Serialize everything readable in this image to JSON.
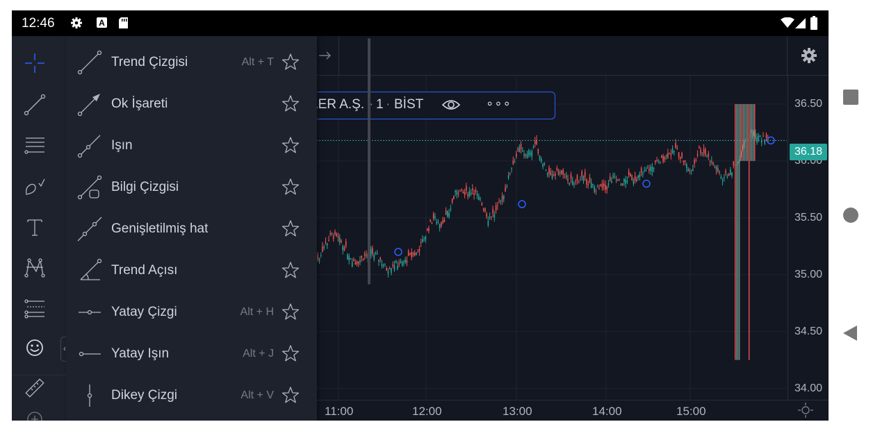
{
  "status_bar": {
    "time": "12:46",
    "left_icons": [
      "gear-icon",
      "a-box-icon",
      "sd-card-icon"
    ],
    "right_icons": [
      "wifi-icon",
      "signal-icon",
      "battery-icon"
    ]
  },
  "drawing_menu": {
    "items": [
      {
        "label": "Trend Çizgisi",
        "shortcut": "Alt + T",
        "icon": "trend-line-icon"
      },
      {
        "label": "Ok İşareti",
        "shortcut": "",
        "icon": "arrow-marker-icon"
      },
      {
        "label": "Işın",
        "shortcut": "",
        "icon": "ray-icon"
      },
      {
        "label": "Bilgi Çizgisi",
        "shortcut": "",
        "icon": "info-line-icon"
      },
      {
        "label": "Genişletilmiş hat",
        "shortcut": "",
        "icon": "extended-line-icon"
      },
      {
        "label": "Trend Açısı",
        "shortcut": "",
        "icon": "trend-angle-icon"
      },
      {
        "label": "Yatay Çizgi",
        "shortcut": "Alt + H",
        "icon": "horizontal-line-icon"
      },
      {
        "label": "Yatay Işın",
        "shortcut": "Alt + J",
        "icon": "horizontal-ray-icon"
      },
      {
        "label": "Dikey Çizgi",
        "shortcut": "Alt + V",
        "icon": "vertical-line-icon"
      }
    ]
  },
  "left_toolbar": {
    "tools": [
      "crosshair-icon",
      "trend-line-tool-icon",
      "fib-tool-icon",
      "brush-tool-icon",
      "text-tool-icon",
      "pattern-tool-icon",
      "prediction-tool-icon",
      "emoji-icon",
      "ruler-icon",
      "zoom-in-icon"
    ]
  },
  "chart": {
    "symbol_legend": {
      "name": "LER A.Ş.",
      "interval": "1",
      "exchange": "BİST",
      "more": "∘∘∘"
    },
    "y_axis_labels": [
      "36.50",
      "36.00",
      "35.50",
      "35.00",
      "34.50",
      "34.00"
    ],
    "current_price": "36.18",
    "x_axis_labels": [
      "11:00",
      "12:00",
      "13:00",
      "14:00",
      "15:00"
    ],
    "colors": {
      "up": "#26a69a",
      "down": "#ef5350",
      "price_badge": "#26a69a",
      "highlight": "#2962ff"
    }
  },
  "chart_data": {
    "type": "candlestick",
    "x": [
      "10:55",
      "11:00",
      "11:05",
      "11:10",
      "11:15",
      "11:20",
      "11:25",
      "11:30",
      "11:35",
      "11:40",
      "11:45",
      "11:50",
      "11:55",
      "12:00",
      "12:05",
      "12:10",
      "12:15",
      "12:20",
      "12:25",
      "12:30",
      "12:35",
      "12:40",
      "12:45",
      "12:50",
      "12:55",
      "13:00",
      "13:05",
      "13:10",
      "13:15",
      "13:20",
      "13:25",
      "13:30",
      "13:35",
      "13:40",
      "13:45",
      "13:50",
      "13:55",
      "14:00",
      "14:05",
      "14:10",
      "14:15",
      "14:20",
      "14:25",
      "14:30",
      "14:35",
      "14:40",
      "14:45",
      "14:50",
      "14:55",
      "15:00",
      "15:05",
      "15:10",
      "15:15",
      "15:20",
      "15:25",
      "15:30",
      "15:35",
      "15:40",
      "15:45"
    ],
    "y": [
      35.1,
      35.25,
      35.35,
      35.3,
      35.2,
      35.1,
      35.15,
      35.2,
      35.15,
      35.05,
      35.1,
      35.1,
      35.15,
      35.2,
      35.35,
      35.5,
      35.45,
      35.55,
      35.75,
      35.7,
      35.75,
      35.65,
      35.5,
      35.55,
      35.7,
      35.95,
      36.1,
      36.05,
      36.15,
      36.0,
      35.85,
      35.9,
      35.85,
      35.8,
      35.85,
      35.8,
      35.75,
      35.75,
      35.85,
      35.8,
      35.85,
      35.85,
      35.9,
      35.95,
      36.0,
      36.05,
      36.1,
      36.0,
      35.9,
      36.1,
      36.05,
      35.95,
      35.85,
      35.9,
      36.0,
      36.2,
      36.25,
      36.2,
      36.18
    ],
    "ylim": [
      33.9,
      36.75
    ],
    "y_ticks": [
      34.0,
      34.5,
      35.0,
      35.5,
      36.0,
      36.5
    ],
    "last_price": 36.18
  }
}
